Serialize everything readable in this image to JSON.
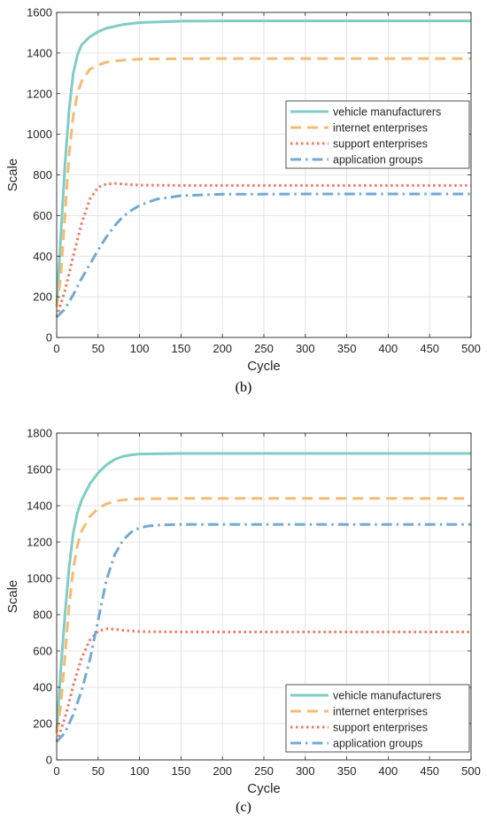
{
  "chart_data": [
    {
      "type": "line",
      "caption": "(b)",
      "xlabel": "Cycle",
      "ylabel": "Scale",
      "xlim": [
        0,
        500
      ],
      "ylim": [
        0,
        1600
      ],
      "xticks": [
        0,
        50,
        100,
        150,
        200,
        250,
        300,
        350,
        400,
        450,
        500
      ],
      "yticks": [
        0,
        200,
        400,
        600,
        800,
        1000,
        1200,
        1400,
        1600
      ],
      "grid": true,
      "legend_position": "center-right",
      "series": [
        {
          "name": "vehicle manufacturers",
          "color": "#7fcdc4",
          "style": "solid",
          "x": [
            0,
            5,
            10,
            15,
            20,
            25,
            30,
            40,
            50,
            60,
            80,
            100,
            150,
            200,
            300,
            400,
            500
          ],
          "y": [
            150,
            500,
            850,
            1120,
            1300,
            1390,
            1440,
            1480,
            1505,
            1522,
            1540,
            1550,
            1557,
            1558,
            1558,
            1558,
            1558
          ]
        },
        {
          "name": "internet enterprises",
          "color": "#f5bb72",
          "style": "dashed",
          "x": [
            0,
            5,
            10,
            15,
            20,
            25,
            30,
            40,
            50,
            60,
            80,
            100,
            150,
            200,
            300,
            400,
            500
          ],
          "y": [
            150,
            300,
            600,
            900,
            1090,
            1200,
            1260,
            1320,
            1340,
            1355,
            1365,
            1370,
            1372,
            1373,
            1373,
            1373,
            1373
          ]
        },
        {
          "name": "support enterprises",
          "color": "#ee7a62",
          "style": "dotted",
          "x": [
            0,
            10,
            20,
            30,
            40,
            50,
            60,
            70,
            80,
            90,
            100,
            150,
            200,
            300,
            400,
            500
          ],
          "y": [
            100,
            230,
            400,
            560,
            680,
            740,
            755,
            758,
            755,
            752,
            750,
            748,
            748,
            748,
            748,
            748
          ]
        },
        {
          "name": "application groups",
          "color": "#74a9d2",
          "style": "dashdot",
          "x": [
            0,
            10,
            20,
            30,
            40,
            50,
            60,
            70,
            80,
            90,
            100,
            120,
            150,
            200,
            300,
            400,
            500
          ],
          "y": [
            100,
            140,
            210,
            290,
            360,
            430,
            495,
            550,
            595,
            625,
            650,
            680,
            698,
            705,
            706,
            706,
            706
          ]
        }
      ]
    },
    {
      "type": "line",
      "caption": "(c)",
      "xlabel": "Cycle",
      "ylabel": "Scale",
      "xlim": [
        0,
        500
      ],
      "ylim": [
        0,
        1800
      ],
      "xticks": [
        0,
        50,
        100,
        150,
        200,
        250,
        300,
        350,
        400,
        450,
        500
      ],
      "yticks": [
        0,
        200,
        400,
        600,
        800,
        1000,
        1200,
        1400,
        1600,
        1800
      ],
      "grid": true,
      "legend_position": "bottom-right",
      "series": [
        {
          "name": "vehicle manufacturers",
          "color": "#7fcdc4",
          "style": "solid",
          "x": [
            0,
            5,
            10,
            15,
            20,
            25,
            30,
            40,
            50,
            60,
            70,
            80,
            90,
            100,
            150,
            200,
            300,
            400,
            500
          ],
          "y": [
            150,
            500,
            800,
            1060,
            1250,
            1360,
            1430,
            1520,
            1580,
            1625,
            1655,
            1672,
            1680,
            1685,
            1688,
            1688,
            1688,
            1688,
            1688
          ]
        },
        {
          "name": "internet enterprises",
          "color": "#f5bb72",
          "style": "dashed",
          "x": [
            0,
            5,
            10,
            15,
            20,
            25,
            30,
            40,
            50,
            60,
            70,
            80,
            100,
            150,
            200,
            300,
            400,
            500
          ],
          "y": [
            150,
            300,
            570,
            850,
            1050,
            1180,
            1260,
            1340,
            1385,
            1410,
            1425,
            1432,
            1438,
            1440,
            1440,
            1440,
            1440,
            1440
          ]
        },
        {
          "name": "support enterprises",
          "color": "#ee7a62",
          "style": "dotted",
          "x": [
            0,
            10,
            20,
            30,
            40,
            50,
            60,
            70,
            80,
            90,
            100,
            150,
            200,
            300,
            400,
            500
          ],
          "y": [
            100,
            230,
            410,
            560,
            660,
            710,
            722,
            720,
            714,
            710,
            707,
            705,
            705,
            705,
            705,
            705
          ]
        },
        {
          "name": "application groups",
          "color": "#74a9d2",
          "style": "dashdot",
          "x": [
            0,
            10,
            20,
            30,
            40,
            50,
            60,
            70,
            80,
            90,
            100,
            110,
            125,
            150,
            200,
            300,
            400,
            500
          ],
          "y": [
            100,
            150,
            250,
            380,
            550,
            770,
            990,
            1130,
            1210,
            1255,
            1278,
            1288,
            1294,
            1297,
            1297,
            1297,
            1297,
            1297
          ]
        }
      ]
    }
  ]
}
